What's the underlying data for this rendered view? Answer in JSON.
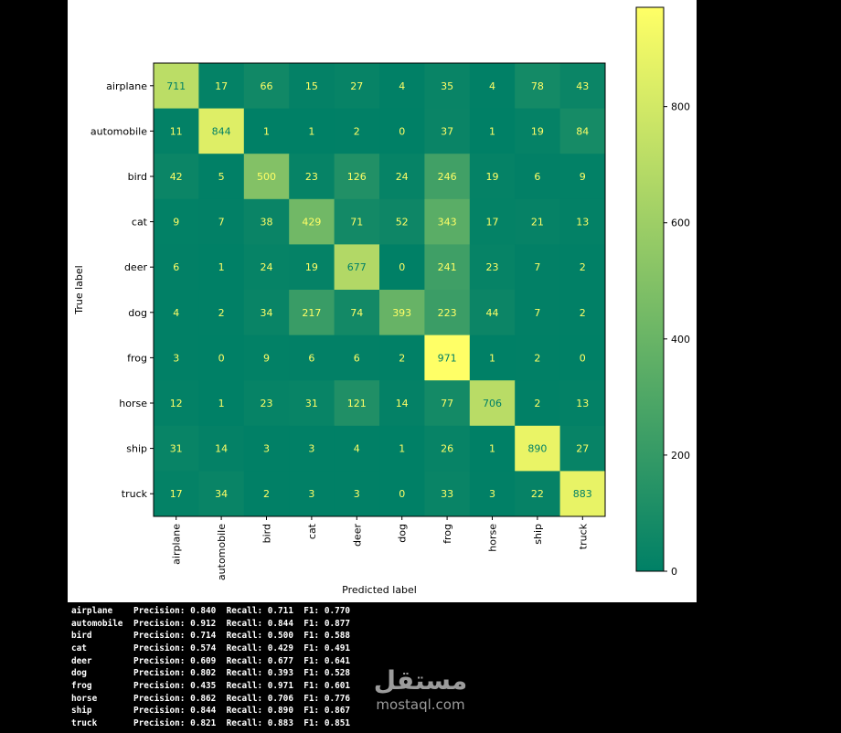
{
  "chart_data": {
    "type": "heatmap",
    "xlabel": "Predicted label",
    "ylabel": "True label",
    "labels": [
      "airplane",
      "automobile",
      "bird",
      "cat",
      "deer",
      "dog",
      "frog",
      "horse",
      "ship",
      "truck"
    ],
    "matrix": [
      [
        711,
        17,
        66,
        15,
        27,
        4,
        35,
        4,
        78,
        43
      ],
      [
        11,
        844,
        1,
        1,
        2,
        0,
        37,
        1,
        19,
        84
      ],
      [
        42,
        5,
        500,
        23,
        126,
        24,
        246,
        19,
        6,
        9
      ],
      [
        9,
        7,
        38,
        429,
        71,
        52,
        343,
        17,
        21,
        13
      ],
      [
        6,
        1,
        24,
        19,
        677,
        0,
        241,
        23,
        7,
        2
      ],
      [
        4,
        2,
        34,
        217,
        74,
        393,
        223,
        44,
        7,
        2
      ],
      [
        3,
        0,
        9,
        6,
        6,
        2,
        971,
        1,
        2,
        0
      ],
      [
        12,
        1,
        23,
        31,
        121,
        14,
        77,
        706,
        2,
        13
      ],
      [
        31,
        14,
        3,
        3,
        4,
        1,
        26,
        1,
        890,
        27
      ],
      [
        17,
        34,
        2,
        3,
        3,
        0,
        33,
        3,
        22,
        883
      ]
    ],
    "colormap": "summer",
    "colorbar": {
      "ticks": [
        0,
        200,
        400,
        600,
        800
      ],
      "range": [
        0,
        971
      ]
    }
  },
  "metrics": {
    "rows": [
      {
        "name": "airplane",
        "text": "Precision: 0.840  Recall: 0.711  F1: 0.770"
      },
      {
        "name": "automobile",
        "text": "Precision: 0.912  Recall: 0.844  F1: 0.877"
      },
      {
        "name": "bird",
        "text": "Precision: 0.714  Recall: 0.500  F1: 0.588"
      },
      {
        "name": "cat",
        "text": "Precision: 0.574  Recall: 0.429  F1: 0.491"
      },
      {
        "name": "deer",
        "text": "Precision: 0.609  Recall: 0.677  F1: 0.641"
      },
      {
        "name": "dog",
        "text": "Precision: 0.802  Recall: 0.393  F1: 0.528"
      },
      {
        "name": "frog",
        "text": "Precision: 0.435  Recall: 0.971  F1: 0.601"
      },
      {
        "name": "horse",
        "text": "Precision: 0.862  Recall: 0.706  F1: 0.776"
      },
      {
        "name": "ship",
        "text": "Precision: 0.844  Recall: 0.890  F1: 0.867"
      },
      {
        "name": "truck",
        "text": "Precision: 0.821  Recall: 0.883  F1: 0.851"
      }
    ]
  },
  "watermark": {
    "arabic": "مستقل",
    "latin": "mostaql.com"
  }
}
